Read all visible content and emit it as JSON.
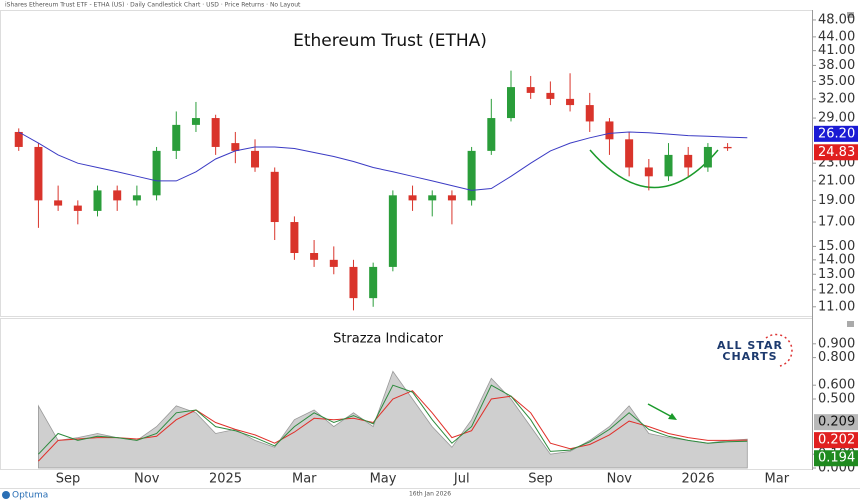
{
  "header": "iShares Ethereum Trust ETF - ETHA (US) · Daily Candlestick Chart · USD · Price Returns · No Layout",
  "footer": {
    "date": "16th Jan 2026",
    "brand": "Optuma"
  },
  "logo": [
    "ALL STAR",
    "CHARTS"
  ],
  "chart_data": [
    {
      "type": "candlestick",
      "title": "Ethereum Trust (ETHA)",
      "categories": [
        null,
        null,
        null,
        "Sep",
        null,
        null,
        null,
        "Nov",
        null,
        null,
        null,
        "2025",
        null,
        null,
        null,
        "Mar",
        null,
        null,
        null,
        "May",
        null,
        null,
        null,
        "Jul",
        null,
        null,
        null,
        "Sep",
        null,
        null,
        null,
        "Nov",
        null,
        null,
        null,
        "2026",
        null,
        null,
        null,
        "Mar",
        null
      ],
      "open": [
        27,
        25,
        19,
        18.5,
        18,
        20,
        19,
        19.5,
        24.5,
        28,
        29,
        25.5,
        24.5,
        22,
        17,
        14.5,
        14,
        13.5,
        11.5,
        13.5,
        19.5,
        19,
        19.5,
        19,
        24.5,
        29,
        34,
        33,
        32,
        31,
        28.5,
        26,
        22.5,
        21.5,
        24,
        22.5,
        25,
        null,
        null,
        null,
        null
      ],
      "high": [
        27.5,
        25.5,
        20.5,
        19,
        20.5,
        20.5,
        20.5,
        25,
        30,
        31.5,
        29.5,
        27,
        26,
        22.5,
        17.5,
        15.5,
        15,
        14,
        13.8,
        20,
        20.5,
        20,
        20,
        25,
        32,
        37,
        36,
        35,
        36.5,
        33,
        29,
        27,
        23.5,
        25.5,
        25,
        25.5,
        25.5,
        null,
        null,
        null,
        null
      ],
      "low": [
        24.5,
        16.5,
        18,
        16.8,
        17.5,
        18,
        18.5,
        19,
        23.5,
        27,
        24,
        23,
        22,
        15.5,
        14,
        13.5,
        13,
        10.8,
        11,
        13.2,
        18,
        17.5,
        16.8,
        18.5,
        24,
        28.5,
        32,
        31,
        30,
        27,
        24,
        21.5,
        20,
        21,
        21.5,
        22,
        24.5,
        null,
        null,
        null,
        null
      ],
      "close": [
        25,
        19,
        18.5,
        18,
        20,
        19,
        19.5,
        24.5,
        28,
        29,
        25,
        24.5,
        22.5,
        17,
        14.5,
        14,
        13.5,
        11.5,
        13.5,
        19.5,
        19,
        19.5,
        19,
        24.5,
        29,
        34,
        33,
        32,
        31,
        28.5,
        26,
        22.5,
        21.5,
        24,
        22.5,
        25,
        24.83,
        null,
        null,
        null,
        null
      ],
      "up_color": "#2a9d3a",
      "down_color": "#d9342b",
      "moving_average": {
        "color": "#3b3bc4",
        "values": [
          27,
          25.5,
          24,
          23,
          22.5,
          22,
          21.5,
          21,
          21,
          22,
          23.5,
          24.5,
          25,
          25,
          24.8,
          24.3,
          23.8,
          23.2,
          22.5,
          22,
          21.5,
          21,
          20.5,
          20,
          20.2,
          21.5,
          23,
          24.5,
          25.5,
          26.2,
          26.8,
          27,
          26.9,
          26.7,
          26.5,
          26.4,
          26.3,
          26.2,
          null,
          null,
          null
        ],
        "value_labels": [
          null,
          null,
          null,
          null,
          null,
          null,
          null,
          null,
          null,
          null,
          null,
          null,
          null,
          null,
          null,
          null,
          null,
          null,
          null,
          null,
          null,
          null,
          null,
          null,
          null,
          null,
          null,
          null,
          null,
          null,
          null,
          null,
          null,
          null,
          null,
          null,
          null,
          "26.20",
          null,
          null,
          null
        ]
      },
      "log_scale": true,
      "grid": false,
      "ylim": [
        10.6,
        50
      ],
      "yticks": [
        {
          "value": 11,
          "label": "11.00"
        },
        {
          "value": 12,
          "label": "12.00"
        },
        {
          "value": 13,
          "label": "13.00"
        },
        {
          "value": 14,
          "label": "14.00"
        },
        {
          "value": 15,
          "label": "15.00"
        },
        {
          "value": 17,
          "label": "17.00"
        },
        {
          "value": 19,
          "label": "19.00"
        },
        {
          "value": 21,
          "label": "21.00"
        },
        {
          "value": 23,
          "label": "23.00"
        },
        {
          "value": 29,
          "label": "29.00"
        },
        {
          "value": 32,
          "label": "32.00"
        },
        {
          "value": 35,
          "label": "35.00"
        },
        {
          "value": 38,
          "label": "38.00"
        },
        {
          "value": 41,
          "label": "41.00"
        },
        {
          "value": 44,
          "label": "44.00"
        },
        {
          "value": 48,
          "label": "48.00"
        }
      ]
    },
    {
      "type": "indicator",
      "title": "Strazza Indicator",
      "ylim": [
        0,
        1
      ],
      "yticks": [
        {
          "value": 0,
          "label": "0.000"
        },
        {
          "value": 0.1,
          "label": "0.100"
        },
        {
          "value": 0.5,
          "label": "0.500"
        },
        {
          "value": 0.6,
          "label": "0.600"
        },
        {
          "value": 0.8,
          "label": "0.800"
        },
        {
          "value": 0.9,
          "label": "0.900"
        }
      ],
      "series": [
        {
          "color": "#cfcfcf",
          "values": [
            null,
            0.45,
            0.2,
            0.22,
            0.25,
            0.22,
            0.2,
            0.3,
            0.45,
            0.4,
            0.25,
            0.28,
            0.2,
            0.15,
            0.35,
            0.42,
            0.3,
            0.4,
            0.3,
            0.7,
            0.5,
            0.3,
            0.15,
            0.35,
            0.65,
            0.5,
            0.3,
            0.1,
            0.12,
            0.2,
            0.3,
            0.45,
            0.25,
            0.22,
            0.2,
            0.18,
            0.2,
            0.209,
            null,
            null,
            null
          ]
        },
        {
          "color": "#e0302a",
          "values": [
            null,
            0.05,
            0.2,
            0.21,
            0.22,
            0.22,
            0.21,
            0.23,
            0.35,
            0.42,
            0.33,
            0.28,
            0.24,
            0.18,
            0.26,
            0.36,
            0.35,
            0.36,
            0.33,
            0.5,
            0.56,
            0.4,
            0.22,
            0.27,
            0.5,
            0.52,
            0.4,
            0.18,
            0.14,
            0.17,
            0.24,
            0.34,
            0.3,
            0.25,
            0.22,
            0.2,
            0.2,
            0.202,
            null,
            null,
            null
          ]
        },
        {
          "color": "#2e8b3e",
          "values": [
            null,
            0.1,
            0.25,
            0.2,
            0.23,
            0.22,
            0.2,
            0.25,
            0.4,
            0.42,
            0.3,
            0.27,
            0.22,
            0.16,
            0.3,
            0.4,
            0.33,
            0.38,
            0.32,
            0.6,
            0.55,
            0.35,
            0.18,
            0.3,
            0.6,
            0.52,
            0.35,
            0.12,
            0.13,
            0.19,
            0.28,
            0.4,
            0.28,
            0.23,
            0.2,
            0.18,
            0.19,
            0.194,
            null,
            null,
            null
          ]
        }
      ]
    }
  ]
}
